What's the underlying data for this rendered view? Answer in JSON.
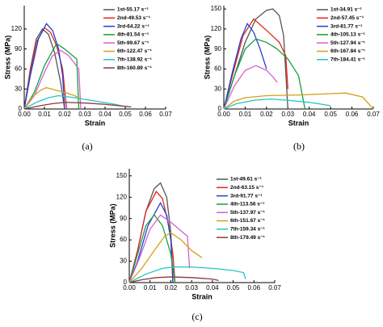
{
  "chart_data": [
    {
      "type": "line",
      "label": "(a)",
      "xlabel": "Strain",
      "ylabel": "Stress (MPa)",
      "xlim": [
        0,
        0.07
      ],
      "ylim": [
        0,
        155
      ],
      "xticks": [
        {
          "value": 0,
          "label": "0.00"
        },
        {
          "value": 0.01,
          "label": "0.01"
        },
        {
          "value": 0.02,
          "label": "0.02"
        },
        {
          "value": 0.03,
          "label": "0.03"
        },
        {
          "value": 0.04,
          "label": "0.04"
        },
        {
          "value": 0.05,
          "label": "0.05"
        },
        {
          "value": 0.06,
          "label": "0.06"
        },
        {
          "value": 0.07,
          "label": "0.07"
        }
      ],
      "yticks": [
        0,
        30,
        60,
        90,
        120
      ],
      "series": [
        {
          "name": "1st-55.17 s⁻¹",
          "color": "#555555",
          "x": [
            0,
            0.003,
            0.006,
            0.009,
            0.012,
            0.015,
            0.018,
            0.02
          ],
          "values": [
            0,
            60,
            105,
            120,
            112,
            85,
            40,
            0
          ]
        },
        {
          "name": "2nd-49.53 s⁻¹",
          "color": "#e8231e",
          "x": [
            0,
            0.003,
            0.006,
            0.01,
            0.013,
            0.016,
            0.019,
            0.021
          ],
          "values": [
            0,
            55,
            100,
            122,
            115,
            95,
            60,
            0
          ]
        },
        {
          "name": "3rd-64.22 s⁻¹",
          "color": "#1f3fd6",
          "x": [
            0,
            0.003,
            0.007,
            0.011,
            0.014,
            0.017,
            0.019,
            0.02
          ],
          "values": [
            0,
            50,
            105,
            128,
            118,
            90,
            50,
            0
          ]
        },
        {
          "name": "4th-81.54 s⁻¹",
          "color": "#14a03c",
          "x": [
            0,
            0.005,
            0.01,
            0.016,
            0.02,
            0.024,
            0.026,
            0.027
          ],
          "values": [
            0,
            25,
            65,
            98,
            90,
            80,
            75,
            0
          ]
        },
        {
          "name": "5th-99.67 s⁻¹",
          "color": "#d560d5",
          "x": [
            0,
            0.005,
            0.01,
            0.014,
            0.018,
            0.022,
            0.027,
            0.028
          ],
          "values": [
            0,
            20,
            55,
            80,
            88,
            80,
            60,
            0
          ]
        },
        {
          "name": "6th-122.47 s⁻¹",
          "color": "#d4a017",
          "x": [
            0,
            0.004,
            0.008,
            0.011,
            0.016,
            0.021,
            0.025,
            0.028
          ],
          "values": [
            0,
            18,
            28,
            32,
            28,
            24,
            20,
            15
          ]
        },
        {
          "name": "7th-138.92 s⁻¹",
          "color": "#22c5c5",
          "x": [
            0,
            0.006,
            0.012,
            0.017,
            0.025,
            0.035,
            0.045,
            0.048
          ],
          "values": [
            0,
            10,
            17,
            20,
            17,
            12,
            7,
            5
          ]
        },
        {
          "name": "8th-160.89 s⁻¹",
          "color": "#8b3a3a",
          "x": [
            0,
            0.008,
            0.014,
            0.02,
            0.03,
            0.04,
            0.05,
            0.053
          ],
          "values": [
            0,
            5,
            8,
            10,
            9,
            7,
            4,
            3
          ]
        }
      ]
    },
    {
      "type": "line",
      "label": "(b)",
      "xlabel": "Strain",
      "ylabel": "Stress (MPa)",
      "xlim": [
        0,
        0.07
      ],
      "ylim": [
        0,
        155
      ],
      "xticks": [
        {
          "value": 0,
          "label": "0.00"
        },
        {
          "value": 0.01,
          "label": "0.01"
        },
        {
          "value": 0.02,
          "label": "0.02"
        },
        {
          "value": 0.03,
          "label": "0.03"
        },
        {
          "value": 0.04,
          "label": "0.04"
        },
        {
          "value": 0.05,
          "label": "0.05"
        },
        {
          "value": 0.06,
          "label": "0.06"
        },
        {
          "value": 0.07,
          "label": "0.07"
        }
      ],
      "yticks": [
        0,
        30,
        60,
        90,
        120,
        150
      ],
      "series": [
        {
          "name": "1st-34.91 s⁻¹",
          "color": "#555555",
          "x": [
            0,
            0.005,
            0.01,
            0.015,
            0.02,
            0.023,
            0.026,
            0.028,
            0.03
          ],
          "values": [
            0,
            50,
            100,
            135,
            148,
            150,
            140,
            110,
            0
          ]
        },
        {
          "name": "2nd-57.45 s⁻¹",
          "color": "#e8231e",
          "x": [
            0,
            0.004,
            0.009,
            0.014,
            0.02,
            0.026,
            0.029,
            0.03
          ],
          "values": [
            0,
            50,
            110,
            135,
            118,
            100,
            80,
            30
          ]
        },
        {
          "name": "3rd-81.77 s⁻¹",
          "color": "#1f3fd6",
          "x": [
            0,
            0.004,
            0.008,
            0.011,
            0.014,
            0.017,
            0.019,
            0.02
          ],
          "values": [
            0,
            55,
            105,
            128,
            115,
            90,
            70,
            60
          ]
        },
        {
          "name": "4th-105.13 s⁻¹",
          "color": "#14a03c",
          "x": [
            0,
            0.005,
            0.01,
            0.015,
            0.02,
            0.025,
            0.03,
            0.035,
            0.038
          ],
          "values": [
            0,
            50,
            90,
            105,
            100,
            90,
            75,
            50,
            0
          ]
        },
        {
          "name": "5th-127.94 s⁻¹",
          "color": "#d560d5",
          "x": [
            0,
            0.005,
            0.01,
            0.015,
            0.02,
            0.023,
            0.025
          ],
          "values": [
            0,
            35,
            58,
            65,
            58,
            48,
            40
          ]
        },
        {
          "name": "6th-167.84 s⁻¹",
          "color": "#d4a017",
          "x": [
            0,
            0.005,
            0.01,
            0.02,
            0.035,
            0.05,
            0.057,
            0.065,
            0.07
          ],
          "values": [
            0,
            12,
            17,
            20,
            21,
            23,
            24,
            18,
            0
          ]
        },
        {
          "name": "7th-184.41 s⁻¹",
          "color": "#22c5c5",
          "x": [
            0,
            0.006,
            0.014,
            0.022,
            0.03,
            0.04,
            0.05
          ],
          "values": [
            0,
            8,
            13,
            15,
            13,
            10,
            5
          ]
        }
      ]
    },
    {
      "type": "line",
      "label": "(c)",
      "xlabel": "Strain",
      "ylabel": "Stress (MPa)",
      "xlim": [
        0,
        0.07
      ],
      "ylim": [
        0,
        160
      ],
      "xticks": [
        {
          "value": 0,
          "label": "0.00"
        },
        {
          "value": 0.01,
          "label": "0.01"
        },
        {
          "value": 0.02,
          "label": "0.02"
        },
        {
          "value": 0.03,
          "label": "0.03"
        },
        {
          "value": 0.04,
          "label": "0.04"
        },
        {
          "value": 0.05,
          "label": "0.05"
        },
        {
          "value": 0.06,
          "label": "0.06"
        },
        {
          "value": 0.07,
          "label": "0.07"
        }
      ],
      "yticks": [
        0,
        30,
        60,
        90,
        120,
        150
      ],
      "series": [
        {
          "name": "1st-49.61 s⁻¹",
          "color": "#555555",
          "x": [
            0,
            0.004,
            0.008,
            0.012,
            0.015,
            0.018,
            0.02,
            0.021
          ],
          "values": [
            0,
            45,
            100,
            132,
            140,
            120,
            70,
            0
          ]
        },
        {
          "name": "2nd-63.15 s⁻¹",
          "color": "#e8231e",
          "x": [
            0,
            0.004,
            0.008,
            0.013,
            0.016,
            0.019,
            0.021,
            0.022
          ],
          "values": [
            0,
            45,
            100,
            128,
            118,
            80,
            40,
            0
          ]
        },
        {
          "name": "3rd-91.77 s⁻¹",
          "color": "#1f3fd6",
          "x": [
            0,
            0.004,
            0.009,
            0.015,
            0.018,
            0.02,
            0.021
          ],
          "values": [
            0,
            30,
            80,
            112,
            95,
            60,
            0
          ]
        },
        {
          "name": "4th-113.56 s⁻¹",
          "color": "#14a03c",
          "x": [
            0,
            0.004,
            0.008,
            0.012,
            0.016,
            0.02,
            0.022
          ],
          "values": [
            0,
            40,
            80,
            95,
            80,
            40,
            0
          ]
        },
        {
          "name": "5th-137.97 s⁻¹",
          "color": "#d560d5",
          "x": [
            0,
            0.005,
            0.01,
            0.015,
            0.02,
            0.024,
            0.028,
            0.029
          ],
          "values": [
            0,
            35,
            75,
            95,
            85,
            75,
            65,
            20
          ]
        },
        {
          "name": "6th-151.67 s⁻¹",
          "color": "#d4a017",
          "x": [
            0,
            0.006,
            0.012,
            0.017,
            0.02,
            0.025,
            0.03,
            0.035
          ],
          "values": [
            0,
            20,
            45,
            65,
            70,
            60,
            45,
            35
          ]
        },
        {
          "name": "7th-159.34 s⁻¹",
          "color": "#22c5c5",
          "x": [
            0,
            0.008,
            0.016,
            0.022,
            0.03,
            0.04,
            0.05,
            0.055,
            0.056
          ],
          "values": [
            0,
            12,
            20,
            22,
            22,
            20,
            17,
            14,
            5
          ]
        },
        {
          "name": "8th-179.49 s⁻¹",
          "color": "#8b3a3a",
          "x": [
            0,
            0.006,
            0.013,
            0.02,
            0.03,
            0.04,
            0.043
          ],
          "values": [
            0,
            4,
            7,
            8,
            7,
            5,
            3
          ]
        }
      ]
    }
  ]
}
